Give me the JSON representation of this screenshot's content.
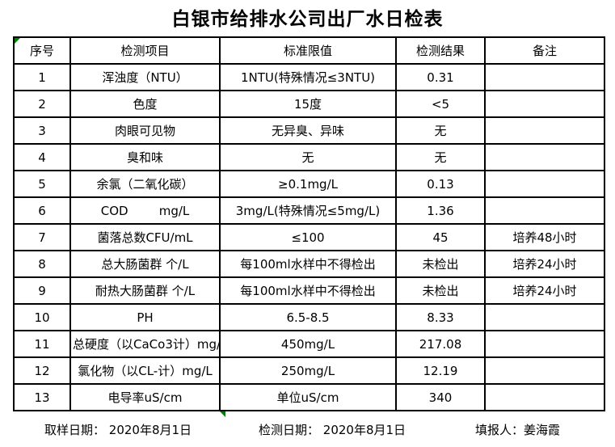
{
  "title": "白银市给排水公司出厂水日检表",
  "colors": {
    "marker_green": "#008000",
    "grid_border": "#000000",
    "title_text": "#000000"
  },
  "table": {
    "headers": [
      "序号",
      "检测项目",
      "标准限值",
      "检测结果",
      "备注"
    ],
    "rows": [
      {
        "no": "1",
        "item": "浑浊度（NTU）",
        "limit": "1NTU(特殊情况≤3NTU)",
        "result": "0.31",
        "remark": ""
      },
      {
        "no": "2",
        "item": "色度",
        "limit": "15度",
        "result": "<5",
        "remark": ""
      },
      {
        "no": "3",
        "item": "肉眼可见物",
        "limit": "无异臭、异味",
        "result": "无",
        "remark": ""
      },
      {
        "no": "4",
        "item": "臭和味",
        "limit": "无",
        "result": "无",
        "remark": ""
      },
      {
        "no": "5",
        "item": "余氯（二氧化碳）",
        "limit": "≥0.1mg/L",
        "result": "0.13",
        "remark": ""
      },
      {
        "no": "6",
        "item": "COD        mg/L",
        "limit": "3mg/L(特殊情况≤5mg/L)",
        "result": "1.36",
        "remark": ""
      },
      {
        "no": "7",
        "item": "菌落总数CFU/mL",
        "limit": "≤100",
        "result": "45",
        "remark": "培养48小时"
      },
      {
        "no": "8",
        "item": "总大肠菌群 个/L",
        "limit": "每100ml水样中不得检出",
        "result": "未检出",
        "remark": "培养24小时"
      },
      {
        "no": "9",
        "item": "耐热大肠菌群 个/L",
        "limit": "每100ml水样中不得检出",
        "result": "未检出",
        "remark": "培养24小时"
      },
      {
        "no": "10",
        "item": "PH",
        "limit": "6.5-8.5",
        "result": "8.33",
        "remark": ""
      },
      {
        "no": "11",
        "item": "总硬度（以CaCo3计）mg/L",
        "limit": "450mg/L",
        "result": "217.08",
        "remark": ""
      },
      {
        "no": "12",
        "item": "氯化物（以CL-计）mg/L",
        "limit": "250mg/L",
        "result": "12.19",
        "remark": ""
      },
      {
        "no": "13",
        "item": "电导率uS/cm",
        "limit": "单位uS/cm",
        "result": "340",
        "remark": ""
      }
    ]
  },
  "footer": {
    "sample_date_label": "取样日期： ",
    "sample_date": "2020年8月1日",
    "test_date_label": "检测日期： ",
    "test_date": "2020年8月1日",
    "reporter_label": "填报人：",
    "reporter": "姜海霞"
  }
}
